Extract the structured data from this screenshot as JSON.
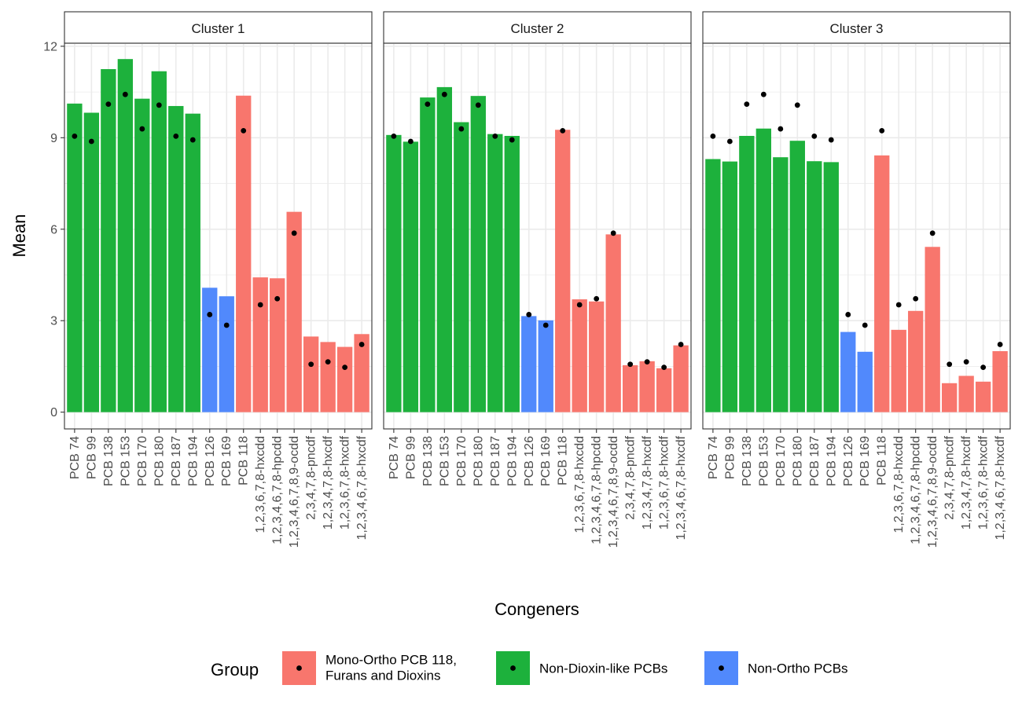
{
  "chart_data": {
    "type": "bar",
    "xlabel": "Congeners",
    "ylabel": "Mean",
    "ylim": [
      -0.55,
      12.1
    ],
    "yticks": [
      0,
      3,
      6,
      9,
      12
    ],
    "grid": true,
    "legend_position": "bottom",
    "legend_title": "Group",
    "categories": [
      "PCB 74",
      "PCB 99",
      "PCB 138",
      "PCB 153",
      "PCB 170",
      "PCB 180",
      "PCB 187",
      "PCB 194",
      "PCB 126",
      "PCB 169",
      "PCB 118",
      "1,2,3,6,7,8-hxcdd",
      "1,2,3,4,6,7,8-hpcdd",
      "1,2,3,4,6,7,8,9-ocdd",
      "2,3,4,7,8-pncdf",
      "1,2,3,4,7,8-hxcdf",
      "1,2,3,6,7,8-hxcdf",
      "1,2,3,4,6,7,8-hxcdf"
    ],
    "category_groups": [
      "ndl",
      "ndl",
      "ndl",
      "ndl",
      "ndl",
      "ndl",
      "ndl",
      "ndl",
      "no",
      "no",
      "mo",
      "mo",
      "mo",
      "mo",
      "mo",
      "mo",
      "mo",
      "mo"
    ],
    "groups": [
      {
        "key": "mo",
        "label_lines": [
          "Mono-Ortho PCB 118,",
          "Furans and Dioxins"
        ],
        "color": "#F8766D"
      },
      {
        "key": "ndl",
        "label_lines": [
          "Non-Dioxin-like PCBs"
        ],
        "color": "#1DB13C"
      },
      {
        "key": "no",
        "label_lines": [
          "Non-Ortho PCBs"
        ],
        "color": "#5189FC"
      }
    ],
    "overall_mean_points": [
      9.05,
      8.88,
      10.1,
      10.42,
      9.29,
      10.07,
      9.05,
      8.93,
      3.2,
      2.85,
      9.23,
      3.52,
      3.72,
      5.87,
      1.57,
      1.65,
      1.47,
      2.22
    ],
    "panels": [
      {
        "strip": "Cluster 1",
        "values": [
          10.12,
          9.82,
          11.25,
          11.58,
          10.28,
          11.18,
          10.04,
          9.79,
          4.08,
          3.8,
          10.38,
          4.42,
          4.39,
          6.57,
          2.48,
          2.3,
          2.14,
          2.56
        ]
      },
      {
        "strip": "Cluster 2",
        "values": [
          9.09,
          8.87,
          10.32,
          10.66,
          9.51,
          10.37,
          9.12,
          9.06,
          3.15,
          3.01,
          9.26,
          3.7,
          3.63,
          5.83,
          1.54,
          1.67,
          1.44,
          2.19
        ]
      },
      {
        "strip": "Cluster 3",
        "values": [
          8.3,
          8.22,
          9.06,
          9.3,
          8.36,
          8.9,
          8.23,
          8.2,
          2.63,
          1.98,
          8.42,
          2.7,
          3.32,
          5.42,
          0.95,
          1.19,
          1.0,
          2.0
        ]
      }
    ]
  }
}
